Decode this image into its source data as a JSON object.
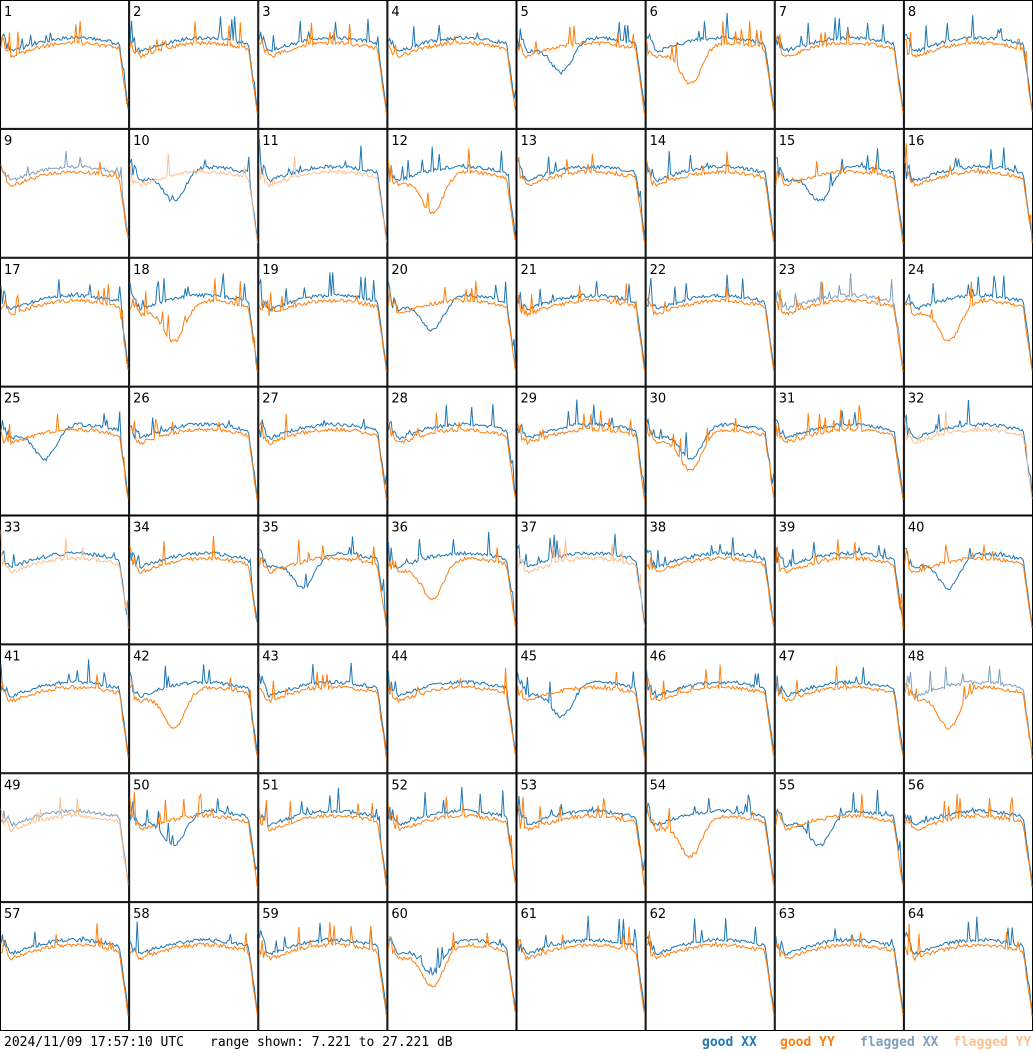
{
  "chart_data": {
    "type": "line",
    "panels": 64,
    "columns": 8,
    "rows": 8,
    "panel_labels": [
      "1",
      "2",
      "3",
      "4",
      "5",
      "6",
      "7",
      "8",
      "9",
      "10",
      "11",
      "12",
      "13",
      "14",
      "15",
      "16",
      "17",
      "18",
      "19",
      "20",
      "21",
      "22",
      "23",
      "24",
      "25",
      "26",
      "27",
      "28",
      "29",
      "30",
      "31",
      "32",
      "33",
      "34",
      "35",
      "36",
      "37",
      "38",
      "39",
      "40",
      "41",
      "42",
      "43",
      "44",
      "45",
      "46",
      "47",
      "48",
      "49",
      "50",
      "51",
      "52",
      "53",
      "54",
      "55",
      "56",
      "57",
      "58",
      "59",
      "60",
      "61",
      "62",
      "63",
      "64"
    ],
    "range_db": [
      7.221,
      27.221
    ],
    "series": [
      {
        "name": "good XX",
        "color": "#1f77b4"
      },
      {
        "name": "good YY",
        "color": "#ff7f0e"
      },
      {
        "name": "flagged XX",
        "color": "#7f9fbf"
      },
      {
        "name": "flagged YY",
        "color": "#ffbf8f"
      }
    ],
    "flags": {
      "flagged_xx": [
        "9",
        "23",
        "48",
        "49"
      ],
      "flagged_yy": [
        "10",
        "11",
        "32",
        "33",
        "37",
        "49"
      ]
    },
    "timestamp": "2024/11/09 17:57:10 UTC",
    "range_text": "range shown: 7.221 to 27.221 dB"
  },
  "legend": {
    "good_xx": "good XX",
    "good_yy": "good YY",
    "flagged_xx": "flagged XX",
    "flagged_yy": "flagged YY"
  },
  "colors": {
    "good_xx": "#1f77b4",
    "good_yy": "#ff7f0e",
    "flagged_xx": "#7f9fbf",
    "flagged_yy": "#ffbf8f"
  }
}
